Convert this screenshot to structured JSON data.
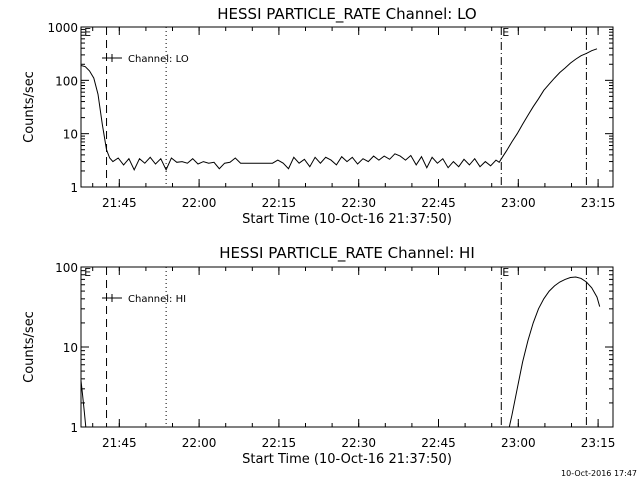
{
  "footer": {
    "timestamp": "10-Oct-2016 17:47"
  },
  "chart_data": [
    {
      "type": "line",
      "title": "HESSI PARTICLE_RATE Channel: LO",
      "xlabel": "Start Time (10-Oct-16 21:37:50)",
      "ylabel": "Counts/sec",
      "yscale": "log",
      "ylim": [
        1,
        1000
      ],
      "xlim_minutes": [
        0,
        100
      ],
      "x_ticks": [
        {
          "label": "21:45",
          "min": 7.2
        },
        {
          "label": "22:00",
          "min": 22.2
        },
        {
          "label": "22:15",
          "min": 37.2
        },
        {
          "label": "22:30",
          "min": 52.2
        },
        {
          "label": "22:45",
          "min": 67.2
        },
        {
          "label": "23:00",
          "min": 82.2
        },
        {
          "label": "23:15",
          "min": 97.2
        }
      ],
      "y_ticks": [
        {
          "label": "1",
          "value": 1
        },
        {
          "label": "10",
          "value": 10
        },
        {
          "label": "100",
          "value": 100
        },
        {
          "label": "1000",
          "value": 1000
        }
      ],
      "legend": {
        "label": "Channel: LO",
        "position": "top-left"
      },
      "markers": [
        {
          "min": 0.4,
          "letter": "E",
          "style": "none"
        },
        {
          "min": 4.8,
          "letter": "",
          "style": "dashed"
        },
        {
          "min": 16.0,
          "letter": "",
          "style": "dotted"
        },
        {
          "min": 79.0,
          "letter": "E",
          "style": "dashdot"
        },
        {
          "min": 95.0,
          "letter": "",
          "style": "dashdot"
        }
      ],
      "series": [
        {
          "values": [
            [
              0,
              190
            ],
            [
              0.8,
              180
            ],
            [
              1.6,
              150
            ],
            [
              2.4,
              110
            ],
            [
              3.2,
              55
            ],
            [
              4.0,
              15
            ],
            [
              4.8,
              5
            ],
            [
              5.4,
              3.5
            ],
            [
              6.0,
              3
            ],
            [
              7,
              3.5
            ],
            [
              8,
              2.6
            ],
            [
              9,
              3.4
            ],
            [
              10,
              2.1
            ],
            [
              11,
              3.4
            ],
            [
              12,
              2.8
            ],
            [
              13,
              3.6
            ],
            [
              14,
              2.7
            ],
            [
              15,
              3.4
            ],
            [
              16,
              2.1
            ],
            [
              17,
              3.5
            ],
            [
              18,
              2.9
            ],
            [
              19,
              3.0
            ],
            [
              20,
              2.8
            ],
            [
              21,
              3.4
            ],
            [
              22,
              2.7
            ],
            [
              23,
              3.0
            ],
            [
              24,
              2.8
            ],
            [
              25,
              2.9
            ],
            [
              26,
              2.2
            ],
            [
              27,
              2.8
            ],
            [
              28,
              2.9
            ],
            [
              29,
              3.5
            ],
            [
              30,
              2.8
            ],
            [
              31,
              2.8
            ],
            [
              32,
              2.8
            ],
            [
              33,
              2.8
            ],
            [
              34,
              2.8
            ],
            [
              35,
              2.8
            ],
            [
              36,
              2.8
            ],
            [
              37,
              3.2
            ],
            [
              38,
              2.8
            ],
            [
              39,
              2.2
            ],
            [
              40,
              3.6
            ],
            [
              41,
              2.8
            ],
            [
              42,
              3.3
            ],
            [
              43,
              2.4
            ],
            [
              44,
              3.6
            ],
            [
              45,
              2.8
            ],
            [
              46,
              3.6
            ],
            [
              47,
              3.2
            ],
            [
              48,
              2.6
            ],
            [
              49,
              3.7
            ],
            [
              50,
              3.0
            ],
            [
              51,
              3.6
            ],
            [
              52,
              2.7
            ],
            [
              53,
              3.4
            ],
            [
              54,
              3.0
            ],
            [
              55,
              3.8
            ],
            [
              56,
              3.2
            ],
            [
              57,
              3.8
            ],
            [
              58,
              3.3
            ],
            [
              59,
              4.2
            ],
            [
              60,
              3.8
            ],
            [
              61,
              3.2
            ],
            [
              62,
              3.9
            ],
            [
              63,
              2.6
            ],
            [
              64,
              3.7
            ],
            [
              65,
              2.3
            ],
            [
              66,
              3.6
            ],
            [
              67,
              2.8
            ],
            [
              68,
              3.4
            ],
            [
              69,
              2.3
            ],
            [
              70,
              3.0
            ],
            [
              71,
              2.4
            ],
            [
              72,
              3.3
            ],
            [
              73,
              2.6
            ],
            [
              74,
              3.4
            ],
            [
              75,
              2.4
            ],
            [
              76,
              3.0
            ],
            [
              77,
              2.5
            ],
            [
              78,
              3.2
            ],
            [
              78.6,
              2.9
            ],
            [
              79.2,
              3.6
            ],
            [
              80,
              4.8
            ],
            [
              81,
              7
            ],
            [
              82,
              10
            ],
            [
              83,
              15
            ],
            [
              84,
              22
            ],
            [
              85,
              32
            ],
            [
              86,
              45
            ],
            [
              87,
              65
            ],
            [
              88,
              85
            ],
            [
              89,
              110
            ],
            [
              90,
              140
            ],
            [
              91,
              170
            ],
            [
              92,
              210
            ],
            [
              93,
              250
            ],
            [
              94,
              290
            ],
            [
              95,
              320
            ],
            [
              96,
              360
            ],
            [
              97,
              390
            ]
          ]
        }
      ]
    },
    {
      "type": "line",
      "title": "HESSI PARTICLE_RATE Channel: HI",
      "xlabel": "Start Time (10-Oct-16 21:37:50)",
      "ylabel": "Counts/sec",
      "yscale": "log",
      "ylim": [
        1,
        100
      ],
      "xlim_minutes": [
        0,
        100
      ],
      "x_ticks": [
        {
          "label": "21:45",
          "min": 7.2
        },
        {
          "label": "22:00",
          "min": 22.2
        },
        {
          "label": "22:15",
          "min": 37.2
        },
        {
          "label": "22:30",
          "min": 52.2
        },
        {
          "label": "22:45",
          "min": 67.2
        },
        {
          "label": "23:00",
          "min": 82.2
        },
        {
          "label": "23:15",
          "min": 97.2
        }
      ],
      "y_ticks": [
        {
          "label": "1",
          "value": 1
        },
        {
          "label": "10",
          "value": 10
        },
        {
          "label": "100",
          "value": 100
        }
      ],
      "legend": {
        "label": "Channel: HI",
        "position": "top-left"
      },
      "markers": [
        {
          "min": 0.4,
          "letter": "E",
          "style": "none"
        },
        {
          "min": 4.8,
          "letter": "",
          "style": "dashed"
        },
        {
          "min": 16.0,
          "letter": "",
          "style": "dotted"
        },
        {
          "min": 79.0,
          "letter": "E",
          "style": "dashdot"
        },
        {
          "min": 95.0,
          "letter": "",
          "style": "dashdot"
        }
      ],
      "series": [
        {
          "segments": [
            [
              [
                0,
                3.8
              ],
              [
                0.3,
                2.5
              ],
              [
                0.6,
                1.6
              ],
              [
                0.9,
                1.0
              ]
            ],
            [
              [
                80.5,
                1.0
              ],
              [
                81,
                1.4
              ],
              [
                82,
                3
              ],
              [
                83,
                6.5
              ],
              [
                84,
                12
              ],
              [
                85,
                20
              ],
              [
                86,
                30
              ],
              [
                87,
                40
              ],
              [
                88,
                50
              ],
              [
                89,
                58
              ],
              [
                90,
                65
              ],
              [
                91,
                70
              ],
              [
                92,
                74
              ],
              [
                93,
                75
              ],
              [
                94,
                72
              ],
              [
                95,
                65
              ],
              [
                96,
                55
              ],
              [
                97,
                42
              ],
              [
                97.5,
                32
              ]
            ]
          ]
        }
      ]
    }
  ]
}
